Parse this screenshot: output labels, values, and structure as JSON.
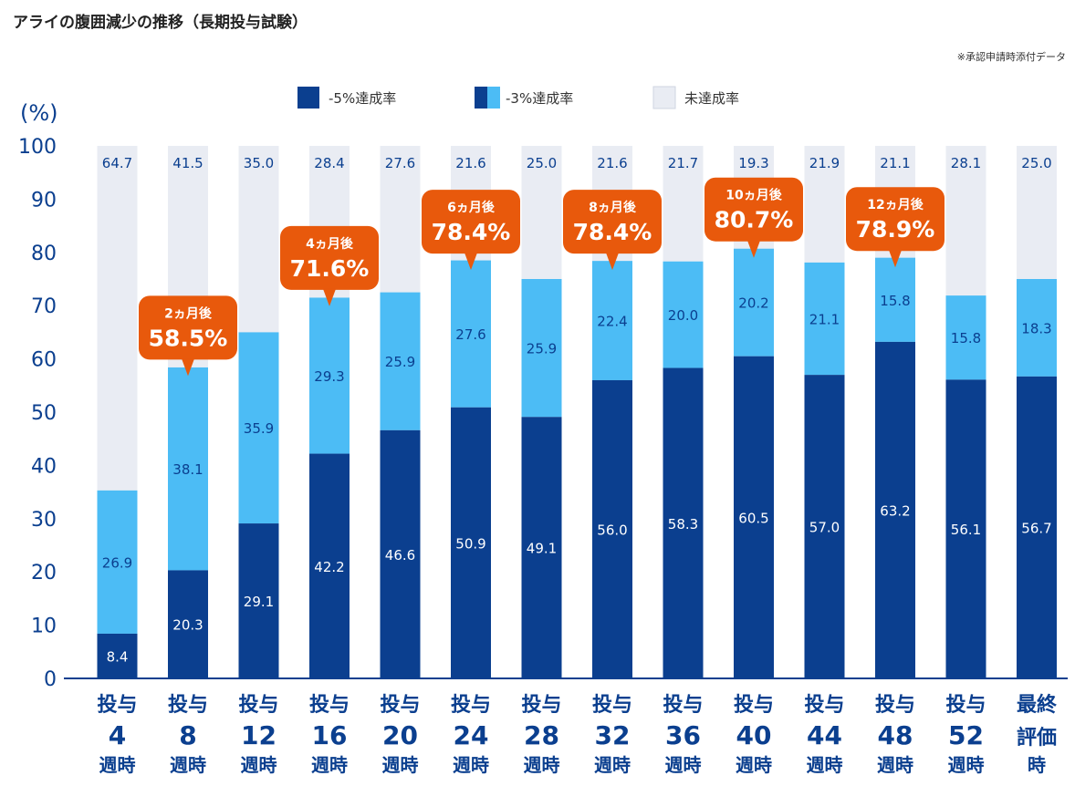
{
  "chart_data": {
    "type": "bar",
    "stacked": true,
    "title": "アライの腹囲減少の推移（長期投与試験）",
    "note": "※承認申請時添付データ",
    "ylabel": "(%)",
    "ylim": [
      0,
      100
    ],
    "yticks": [
      0,
      10,
      20,
      30,
      40,
      50,
      60,
      70,
      80,
      90,
      100
    ],
    "legend_position": "top-center",
    "colors": {
      "five": "#0b3f8f",
      "three": "#4cbcf5",
      "rest": "#e9ecf3",
      "callout": "#e8590c"
    },
    "legend": [
      {
        "key": "five",
        "label": "-5%達成率"
      },
      {
        "key": "three",
        "label": "-3%達成率"
      },
      {
        "key": "rest",
        "label": "未達成率"
      }
    ],
    "categories": [
      {
        "top": "投与",
        "num": "4",
        "bottom": "週時"
      },
      {
        "top": "投与",
        "num": "8",
        "bottom": "週時"
      },
      {
        "top": "投与",
        "num": "12",
        "bottom": "週時"
      },
      {
        "top": "投与",
        "num": "16",
        "bottom": "週時"
      },
      {
        "top": "投与",
        "num": "20",
        "bottom": "週時"
      },
      {
        "top": "投与",
        "num": "24",
        "bottom": "週時"
      },
      {
        "top": "投与",
        "num": "28",
        "bottom": "週時"
      },
      {
        "top": "投与",
        "num": "32",
        "bottom": "週時"
      },
      {
        "top": "投与",
        "num": "36",
        "bottom": "週時"
      },
      {
        "top": "投与",
        "num": "40",
        "bottom": "週時"
      },
      {
        "top": "投与",
        "num": "44",
        "bottom": "週時"
      },
      {
        "top": "投与",
        "num": "48",
        "bottom": "週時"
      },
      {
        "top": "投与",
        "num": "52",
        "bottom": "週時"
      },
      {
        "top": "最終",
        "num": "評価",
        "bottom": "時"
      }
    ],
    "series": [
      {
        "name": "-5%達成率",
        "key": "five",
        "values": [
          8.4,
          20.3,
          29.1,
          42.2,
          46.6,
          50.9,
          49.1,
          56.0,
          58.3,
          60.5,
          57.0,
          63.2,
          56.1,
          56.7
        ]
      },
      {
        "name": "-3%達成率",
        "key": "three",
        "values": [
          26.9,
          38.1,
          35.9,
          29.3,
          25.9,
          27.6,
          25.9,
          22.4,
          20.0,
          20.2,
          21.1,
          15.8,
          15.8,
          18.3
        ]
      },
      {
        "name": "未達成率",
        "key": "rest",
        "values": [
          64.7,
          41.5,
          35.0,
          28.4,
          27.6,
          21.6,
          25.0,
          21.6,
          21.7,
          19.3,
          21.9,
          21.1,
          28.1,
          25.0
        ]
      }
    ],
    "callouts": [
      {
        "index": 1,
        "label": "2ヵ月後",
        "value": "58.5%",
        "at": 58.5
      },
      {
        "index": 3,
        "label": "4ヵ月後",
        "value": "71.6%",
        "at": 71.6
      },
      {
        "index": 5,
        "label": "6ヵ月後",
        "value": "78.4%",
        "at": 78.4
      },
      {
        "index": 7,
        "label": "8ヵ月後",
        "value": "78.4%",
        "at": 78.4
      },
      {
        "index": 9,
        "label": "10ヵ月後",
        "value": "80.7%",
        "at": 80.7
      },
      {
        "index": 11,
        "label": "12ヵ月後",
        "value": "78.9%",
        "at": 78.9
      }
    ]
  }
}
